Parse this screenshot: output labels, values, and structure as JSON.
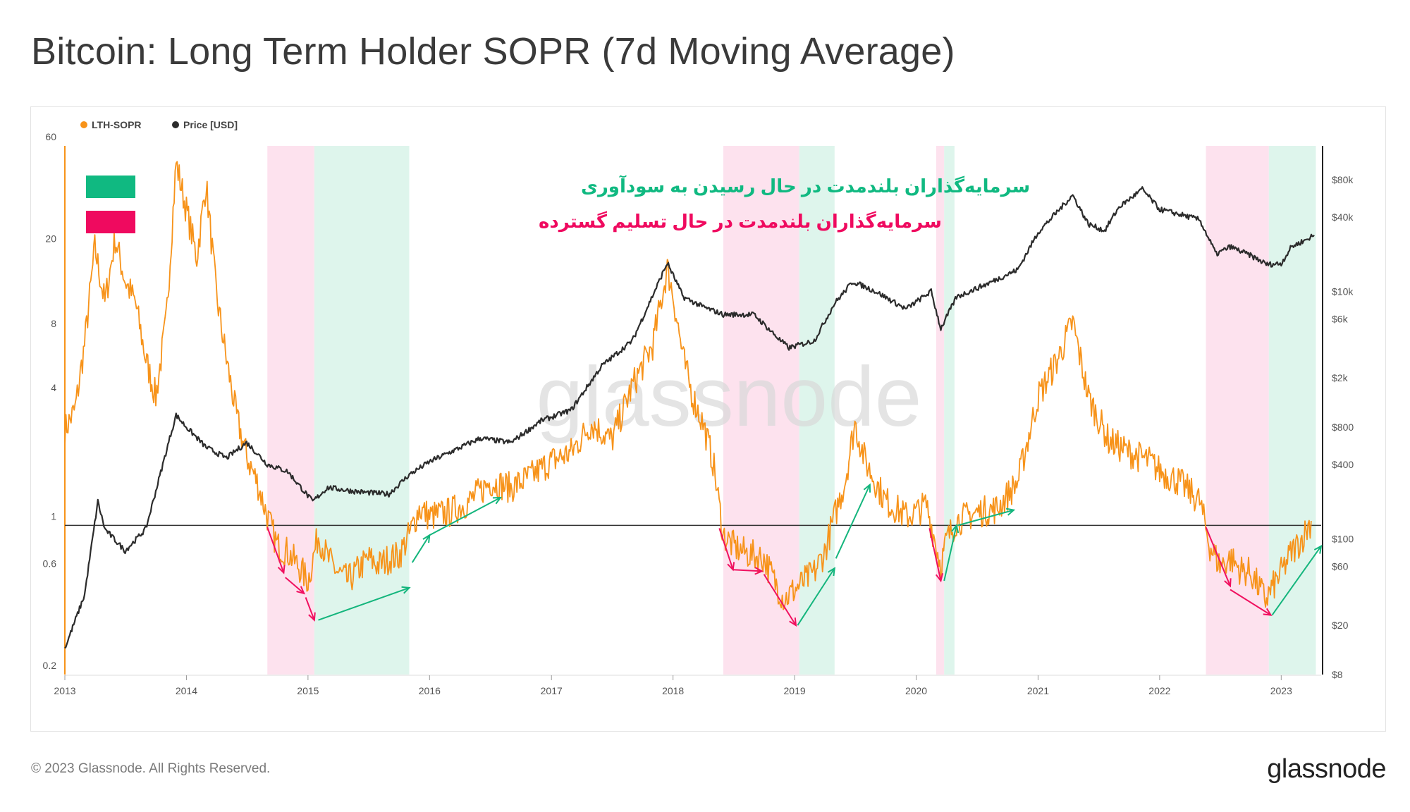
{
  "title": "Bitcoin: Long Term Holder SOPR (7d Moving Average)",
  "footer": {
    "copyright": "© 2023 Glassnode. All Rights Reserved.",
    "logo": "glassnode"
  },
  "watermark": "glassnode",
  "colors": {
    "sopr": "#f7931a",
    "price": "#2b2b2b",
    "green_band": "#def5ec",
    "pink_band": "#fde2ee",
    "green_arrow": "#13b57c",
    "pink_arrow": "#f0105f",
    "green_text": "#10b981",
    "pink_text": "#ef0a5f"
  },
  "annotations": {
    "green_label": "سرمایه‌گذاران بلندمدت در حال رسیدن به سودآوری",
    "pink_label": "سرمایه‌گذاران بلندمدت در حال تسلیم گسترده"
  },
  "chart_data": {
    "type": "line",
    "legend": [
      {
        "name": "LTH-SOPR",
        "color": "#f7931a"
      },
      {
        "name": "Price [USD]",
        "color": "#2b2b2b"
      }
    ],
    "x_ticks": [
      "2013",
      "2014",
      "2015",
      "2016",
      "2017",
      "2018",
      "2019",
      "2020",
      "2021",
      "2022",
      "2023"
    ],
    "y_left": {
      "scale": "log",
      "range": [
        0.2,
        60
      ],
      "ticks": [
        "0.2",
        "0.6",
        "1",
        "4",
        "8",
        "20",
        "60"
      ],
      "ticks_values": [
        0.2,
        0.6,
        1,
        4,
        8,
        20,
        60
      ]
    },
    "y_right": {
      "scale": "log",
      "range": [
        8,
        150000
      ],
      "ticks": [
        "$8",
        "$20",
        "$60",
        "$100",
        "$400",
        "$800",
        "$2k",
        "$6k",
        "$10k",
        "$40k",
        "$80k"
      ],
      "ticks_values": [
        8,
        20,
        60,
        100,
        400,
        800,
        2000,
        6000,
        10000,
        40000,
        80000
      ]
    },
    "reference_line": 1,
    "bands": [
      {
        "kind": "pink",
        "from": "2014-09-01",
        "to": "2015-01-20"
      },
      {
        "kind": "green",
        "from": "2015-01-20",
        "to": "2015-11-01"
      },
      {
        "kind": "pink",
        "from": "2018-06-01",
        "to": "2019-01-15"
      },
      {
        "kind": "green",
        "from": "2019-01-15",
        "to": "2019-05-01"
      },
      {
        "kind": "pink",
        "from": "2020-03-01",
        "to": "2020-03-25"
      },
      {
        "kind": "green",
        "from": "2020-03-25",
        "to": "2020-04-25"
      },
      {
        "kind": "pink",
        "from": "2022-05-20",
        "to": "2022-11-25"
      },
      {
        "kind": "green",
        "from": "2022-11-25",
        "to": "2023-04-15"
      }
    ],
    "series": [
      {
        "name": "LTH-SOPR",
        "axis": "left",
        "points": [
          [
            "2013-01-01",
            2.8
          ],
          [
            "2013-02-01",
            3.5
          ],
          [
            "2013-03-01",
            7
          ],
          [
            "2013-04-01",
            20
          ],
          [
            "2013-05-01",
            11
          ],
          [
            "2013-06-01",
            22
          ],
          [
            "2013-07-01",
            14
          ],
          [
            "2013-08-01",
            11
          ],
          [
            "2013-09-01",
            6
          ],
          [
            "2013-10-01",
            4
          ],
          [
            "2013-11-01",
            9
          ],
          [
            "2013-12-01",
            50
          ],
          [
            "2014-01-01",
            30
          ],
          [
            "2014-02-01",
            18
          ],
          [
            "2014-03-01",
            40
          ],
          [
            "2014-04-01",
            12
          ],
          [
            "2014-05-01",
            6
          ],
          [
            "2014-06-01",
            3.2
          ],
          [
            "2014-07-01",
            2.1
          ],
          [
            "2014-08-01",
            1.6
          ],
          [
            "2014-09-01",
            1.1
          ],
          [
            "2014-10-01",
            0.8
          ],
          [
            "2014-11-01",
            0.75
          ],
          [
            "2014-12-01",
            0.65
          ],
          [
            "2015-01-01",
            0.55
          ],
          [
            "2015-02-01",
            0.9
          ],
          [
            "2015-03-01",
            0.7
          ],
          [
            "2015-04-01",
            0.6
          ],
          [
            "2015-05-01",
            0.55
          ],
          [
            "2015-06-01",
            0.62
          ],
          [
            "2015-07-01",
            0.7
          ],
          [
            "2015-08-01",
            0.65
          ],
          [
            "2015-09-01",
            0.7
          ],
          [
            "2015-10-01",
            0.72
          ],
          [
            "2015-11-01",
            0.9
          ],
          [
            "2015-12-01",
            1.2
          ],
          [
            "2016-01-01",
            1.1
          ],
          [
            "2016-03-01",
            1.15
          ],
          [
            "2016-05-01",
            1.3
          ],
          [
            "2016-07-01",
            1.6
          ],
          [
            "2016-09-01",
            1.5
          ],
          [
            "2016-11-01",
            1.7
          ],
          [
            "2017-01-01",
            2.0
          ],
          [
            "2017-03-01",
            2.2
          ],
          [
            "2017-05-01",
            3.0
          ],
          [
            "2017-07-01",
            2.5
          ],
          [
            "2017-09-01",
            4.5
          ],
          [
            "2017-11-01",
            7
          ],
          [
            "2017-12-15",
            16
          ],
          [
            "2018-01-01",
            12
          ],
          [
            "2018-02-01",
            6
          ],
          [
            "2018-03-01",
            4
          ],
          [
            "2018-04-01",
            3
          ],
          [
            "2018-05-01",
            2
          ],
          [
            "2018-06-01",
            0.9
          ],
          [
            "2018-07-01",
            0.8
          ],
          [
            "2018-08-01",
            0.75
          ],
          [
            "2018-09-01",
            0.72
          ],
          [
            "2018-10-01",
            0.7
          ],
          [
            "2018-11-01",
            0.55
          ],
          [
            "2018-12-01",
            0.45
          ],
          [
            "2019-01-01",
            0.5
          ],
          [
            "2019-02-01",
            0.55
          ],
          [
            "2019-03-01",
            0.6
          ],
          [
            "2019-04-01",
            0.75
          ],
          [
            "2019-05-01",
            1.1
          ],
          [
            "2019-06-01",
            1.6
          ],
          [
            "2019-07-01",
            3.0
          ],
          [
            "2019-08-01",
            2.0
          ],
          [
            "2019-09-01",
            1.6
          ],
          [
            "2019-10-01",
            1.3
          ],
          [
            "2019-11-01",
            1.2
          ],
          [
            "2019-12-01",
            1.1
          ],
          [
            "2020-01-01",
            1.15
          ],
          [
            "2020-02-01",
            1.25
          ],
          [
            "2020-03-15",
            0.65
          ],
          [
            "2020-04-01",
            0.85
          ],
          [
            "2020-05-01",
            1.05
          ],
          [
            "2020-07-01",
            1.15
          ],
          [
            "2020-09-01",
            1.2
          ],
          [
            "2020-11-01",
            1.6
          ],
          [
            "2021-01-01",
            4
          ],
          [
            "2021-03-01",
            6
          ],
          [
            "2021-04-15",
            9
          ],
          [
            "2021-06-01",
            4
          ],
          [
            "2021-08-01",
            2.5
          ],
          [
            "2021-10-01",
            2.2
          ],
          [
            "2021-12-01",
            2.0
          ],
          [
            "2022-01-01",
            1.8
          ],
          [
            "2022-03-01",
            1.6
          ],
          [
            "2022-05-01",
            1.3
          ],
          [
            "2022-06-01",
            0.8
          ],
          [
            "2022-07-01",
            0.65
          ],
          [
            "2022-08-01",
            0.7
          ],
          [
            "2022-09-01",
            0.62
          ],
          [
            "2022-10-01",
            0.6
          ],
          [
            "2022-11-15",
            0.45
          ],
          [
            "2023-01-01",
            0.6
          ],
          [
            "2023-02-01",
            0.75
          ],
          [
            "2023-03-01",
            0.85
          ],
          [
            "2023-04-01",
            1.05
          ]
        ]
      },
      {
        "name": "Price [USD]",
        "axis": "right",
        "points": [
          [
            "2013-01-01",
            13
          ],
          [
            "2013-03-01",
            35
          ],
          [
            "2013-04-10",
            200
          ],
          [
            "2013-05-01",
            120
          ],
          [
            "2013-07-01",
            80
          ],
          [
            "2013-09-01",
            120
          ],
          [
            "2013-11-15",
            700
          ],
          [
            "2013-12-01",
            1000
          ],
          [
            "2014-01-01",
            800
          ],
          [
            "2014-03-01",
            550
          ],
          [
            "2014-05-01",
            450
          ],
          [
            "2014-07-01",
            600
          ],
          [
            "2014-09-01",
            400
          ],
          [
            "2014-11-01",
            350
          ],
          [
            "2015-01-15",
            200
          ],
          [
            "2015-03-01",
            260
          ],
          [
            "2015-06-01",
            240
          ],
          [
            "2015-09-01",
            230
          ],
          [
            "2015-11-01",
            330
          ],
          [
            "2016-01-01",
            420
          ],
          [
            "2016-06-01",
            650
          ],
          [
            "2016-09-01",
            600
          ],
          [
            "2016-12-01",
            900
          ],
          [
            "2017-03-01",
            1100
          ],
          [
            "2017-06-01",
            2500
          ],
          [
            "2017-09-01",
            4000
          ],
          [
            "2017-12-15",
            17000
          ],
          [
            "2018-02-01",
            9000
          ],
          [
            "2018-04-01",
            7500
          ],
          [
            "2018-06-01",
            6500
          ],
          [
            "2018-09-01",
            6500
          ],
          [
            "2018-11-20",
            4000
          ],
          [
            "2018-12-15",
            3500
          ],
          [
            "2019-03-01",
            4000
          ],
          [
            "2019-05-01",
            8000
          ],
          [
            "2019-06-25",
            12000
          ],
          [
            "2019-09-01",
            10000
          ],
          [
            "2019-12-01",
            7200
          ],
          [
            "2020-02-15",
            10000
          ],
          [
            "2020-03-15",
            5000
          ],
          [
            "2020-05-01",
            9000
          ],
          [
            "2020-08-01",
            11500
          ],
          [
            "2020-11-01",
            15000
          ],
          [
            "2021-01-01",
            30000
          ],
          [
            "2021-04-15",
            60000
          ],
          [
            "2021-06-01",
            35000
          ],
          [
            "2021-07-20",
            31000
          ],
          [
            "2021-09-01",
            48000
          ],
          [
            "2021-11-10",
            67000
          ],
          [
            "2022-01-01",
            46000
          ],
          [
            "2022-03-01",
            42000
          ],
          [
            "2022-05-01",
            38000
          ],
          [
            "2022-06-20",
            20000
          ],
          [
            "2022-08-01",
            23000
          ],
          [
            "2022-10-01",
            19500
          ],
          [
            "2022-11-20",
            16500
          ],
          [
            "2023-01-01",
            16800
          ],
          [
            "2023-02-01",
            23000
          ],
          [
            "2023-03-15",
            26000
          ],
          [
            "2023-04-10",
            28500
          ]
        ]
      }
    ]
  }
}
